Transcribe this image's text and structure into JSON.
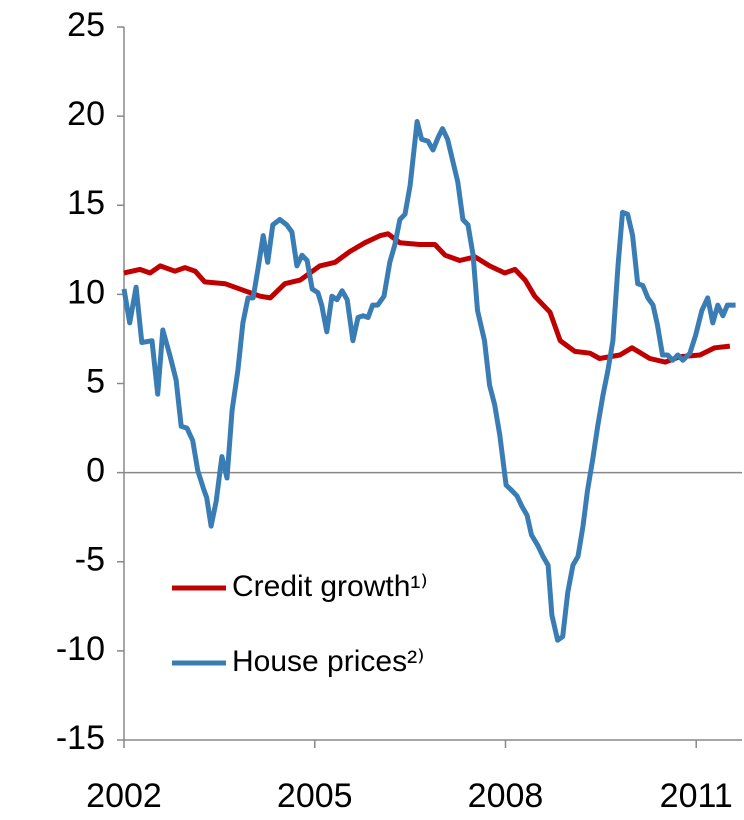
{
  "chart_data": {
    "type": "line",
    "xlim": [
      2002,
      2011.72
    ],
    "xticks": [
      2002,
      2005,
      2008,
      2011
    ],
    "ylim": [
      -15,
      25
    ],
    "yticks": [
      -15,
      -10,
      -5,
      0,
      5,
      10,
      15,
      20,
      25
    ],
    "legend": "lower-left",
    "series": [
      {
        "name": "Credit growth¹⁾",
        "color": "#c00000",
        "x": [
          2002.0,
          2002.25,
          2002.41,
          2002.57,
          2002.8,
          2002.96,
          2003.12,
          2003.27,
          2003.59,
          2003.9,
          2004.14,
          2004.3,
          2004.53,
          2004.77,
          2005.08,
          2005.32,
          2005.55,
          2005.79,
          2006.03,
          2006.15,
          2006.34,
          2006.65,
          2006.89,
          2007.05,
          2007.28,
          2007.52,
          2007.75,
          2007.99,
          2008.15,
          2008.31,
          2008.46,
          2008.7,
          2008.86,
          2009.09,
          2009.33,
          2009.48,
          2009.8,
          2009.99,
          2010.27,
          2010.51,
          2010.74,
          2011.06,
          2011.29,
          2011.53
        ],
        "values": [
          11.2,
          11.4,
          11.2,
          11.6,
          11.3,
          11.5,
          11.3,
          10.7,
          10.6,
          10.2,
          9.9,
          9.8,
          10.6,
          10.8,
          11.6,
          11.8,
          12.4,
          12.9,
          13.3,
          13.4,
          12.9,
          12.8,
          12.8,
          12.2,
          11.9,
          12.1,
          11.6,
          11.2,
          11.4,
          10.8,
          9.9,
          9.0,
          7.4,
          6.8,
          6.7,
          6.4,
          6.6,
          7.0,
          6.4,
          6.2,
          6.5,
          6.6,
          7.0,
          7.1
        ]
      },
      {
        "name": "House prices²⁾",
        "color": "#3a7db4",
        "x": [
          2002.0,
          2002.09,
          2002.19,
          2002.28,
          2002.44,
          2002.53,
          2002.61,
          2002.72,
          2002.82,
          2002.9,
          2002.99,
          2003.08,
          2003.16,
          2003.26,
          2003.3,
          2003.37,
          2003.45,
          2003.54,
          2003.62,
          2003.7,
          2003.79,
          2003.87,
          2003.95,
          2004.03,
          2004.11,
          2004.19,
          2004.26,
          2004.34,
          2004.45,
          2004.56,
          2004.64,
          2004.72,
          2004.8,
          2004.88,
          2004.96,
          2005.05,
          2005.11,
          2005.19,
          2005.27,
          2005.35,
          2005.43,
          2005.51,
          2005.6,
          2005.68,
          2005.76,
          2005.84,
          2005.91,
          2005.99,
          2006.09,
          2006.18,
          2006.26,
          2006.34,
          2006.42,
          2006.5,
          2006.61,
          2006.68,
          2006.78,
          2006.86,
          2006.94,
          2007.01,
          2007.09,
          2007.17,
          2007.25,
          2007.33,
          2007.41,
          2007.49,
          2007.56,
          2007.67,
          2007.75,
          2007.83,
          2007.91,
          2008.01,
          2008.1,
          2008.18,
          2008.26,
          2008.34,
          2008.41,
          2008.51,
          2008.59,
          2008.67,
          2008.73,
          2008.82,
          2008.9,
          2008.98,
          2009.06,
          2009.14,
          2009.22,
          2009.29,
          2009.37,
          2009.45,
          2009.53,
          2009.61,
          2009.69,
          2009.77,
          2009.84,
          2009.92,
          2010.0,
          2010.08,
          2010.16,
          2010.24,
          2010.32,
          2010.39,
          2010.47,
          2010.55,
          2010.63,
          2010.71,
          2010.79,
          2010.9,
          2010.99,
          2011.09,
          2011.18,
          2011.26,
          2011.34,
          2011.42,
          2011.49,
          2011.62
        ],
        "values": [
          10.3,
          8.4,
          10.4,
          7.3,
          7.4,
          4.4,
          8.0,
          6.6,
          5.2,
          2.6,
          2.5,
          1.8,
          0.1,
          -1.0,
          -1.4,
          -3.0,
          -1.6,
          0.9,
          -0.3,
          3.5,
          5.7,
          8.4,
          9.8,
          9.8,
          11.5,
          13.3,
          11.8,
          13.9,
          14.2,
          13.9,
          13.5,
          11.6,
          12.2,
          11.9,
          10.3,
          10.1,
          9.4,
          7.9,
          9.9,
          9.7,
          10.2,
          9.7,
          7.4,
          8.7,
          8.8,
          8.7,
          9.4,
          9.4,
          9.9,
          11.8,
          12.8,
          14.2,
          14.5,
          16.1,
          19.7,
          18.7,
          18.6,
          18.1,
          18.8,
          19.3,
          18.7,
          17.5,
          16.3,
          14.2,
          13.9,
          12.2,
          9.1,
          7.4,
          4.9,
          3.8,
          2.1,
          -0.7,
          -1.0,
          -1.3,
          -1.9,
          -2.4,
          -3.5,
          -4.1,
          -4.7,
          -5.2,
          -8.0,
          -9.4,
          -9.2,
          -6.7,
          -5.2,
          -4.7,
          -3.0,
          -1.0,
          0.7,
          2.6,
          4.3,
          5.7,
          7.4,
          11.6,
          14.6,
          14.5,
          13.3,
          10.6,
          10.5,
          9.8,
          9.4,
          8.3,
          6.6,
          6.6,
          6.3,
          6.6,
          6.3,
          6.7,
          7.7,
          9.1,
          9.8,
          8.4,
          9.4,
          8.8,
          9.4,
          9.4
        ]
      }
    ]
  }
}
